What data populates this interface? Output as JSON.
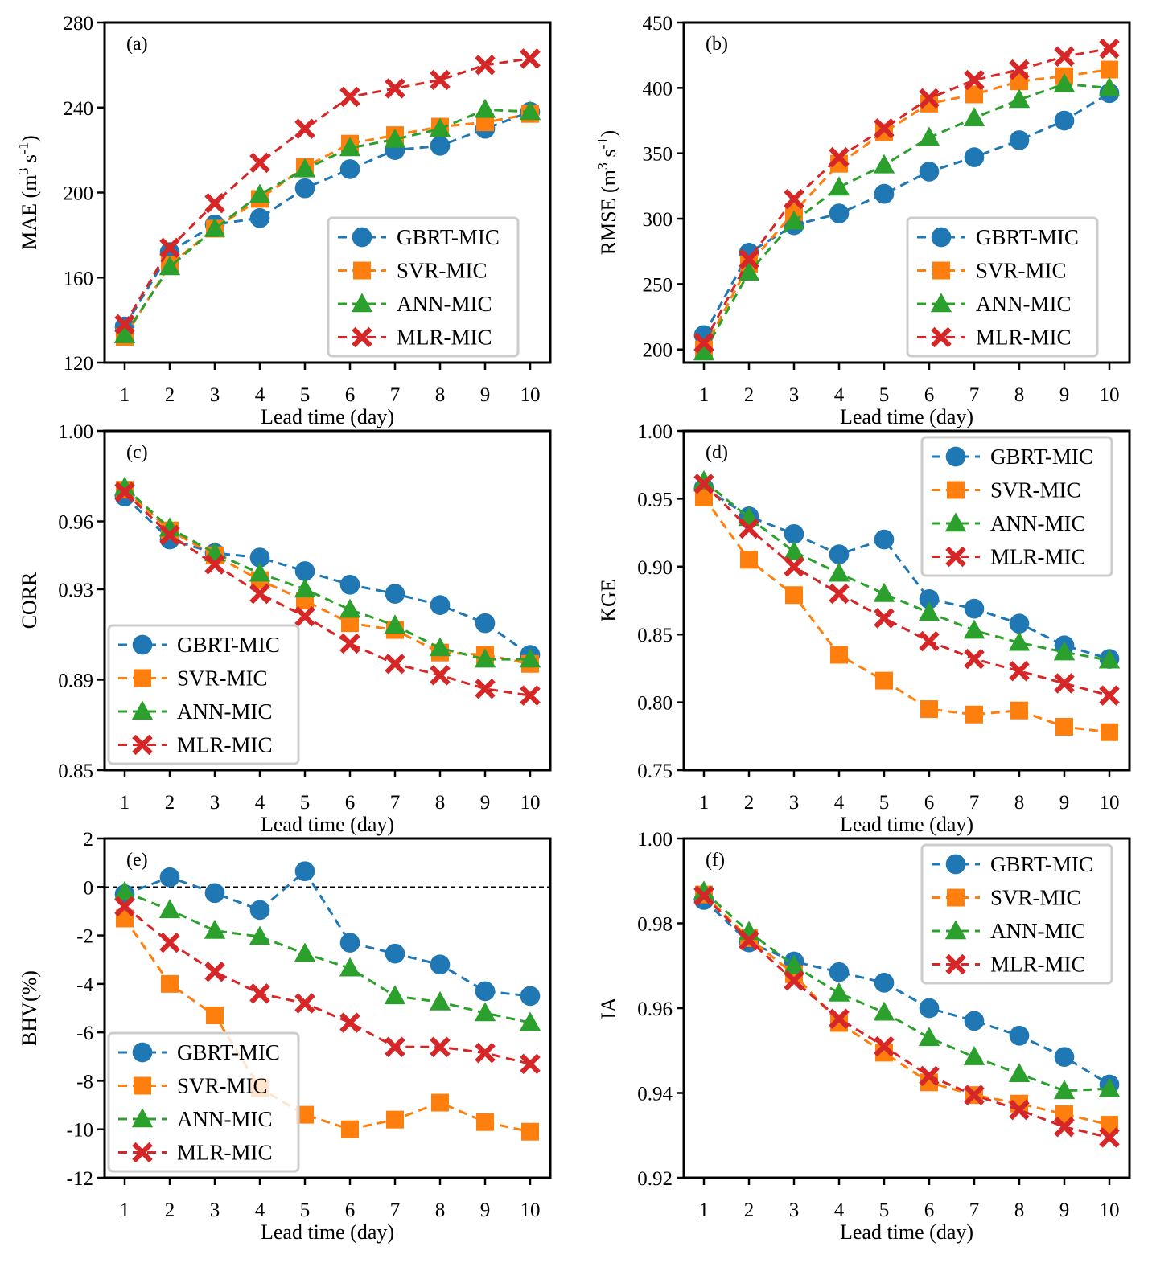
{
  "figure": {
    "shared": {
      "x": [
        1,
        2,
        3,
        4,
        5,
        6,
        7,
        8,
        9,
        10
      ],
      "x_ticks": [
        "1",
        "2",
        "3",
        "4",
        "5",
        "6",
        "7",
        "8",
        "9",
        "10"
      ],
      "series_styles": [
        {
          "name": "GBRT-MIC",
          "color": "#1f77b4",
          "marker": "circle"
        },
        {
          "name": "SVR-MIC",
          "color": "#ff7f0e",
          "marker": "square"
        },
        {
          "name": "ANN-MIC",
          "color": "#2ca02c",
          "marker": "triangle"
        },
        {
          "name": "MLR-MIC",
          "color": "#d62728",
          "marker": "x-filled"
        }
      ]
    }
  },
  "chart_data": [
    {
      "type": "line",
      "panel": "(a)",
      "title": "",
      "xlabel": "Lead time (day)",
      "ylabel": "MAE (m³ s⁻¹)",
      "ylabel_parts": {
        "base": "MAE (m",
        "sup1": "3",
        "mid": " s",
        "sup2": "-1",
        "end": ")"
      },
      "ylim": [
        120,
        280
      ],
      "yticks": [
        120,
        160,
        200,
        240,
        280
      ],
      "ytick_labels": [
        "120",
        "160",
        "200",
        "240",
        "280"
      ],
      "legend_position": "lower-right",
      "zero_line": false,
      "x": [
        1,
        2,
        3,
        4,
        5,
        6,
        7,
        8,
        9,
        10
      ],
      "series": [
        {
          "name": "GBRT-MIC",
          "values": [
            137,
            172,
            185,
            188,
            202,
            211,
            220,
            222,
            230,
            238
          ]
        },
        {
          "name": "SVR-MIC",
          "values": [
            132,
            166,
            183,
            197,
            212,
            223,
            227,
            231,
            233,
            237
          ]
        },
        {
          "name": "ANN-MIC",
          "values": [
            133,
            165,
            183,
            199,
            211,
            221,
            225,
            230,
            239,
            238
          ]
        },
        {
          "name": "MLR-MIC",
          "values": [
            138,
            174,
            195,
            214,
            230,
            245,
            249,
            253,
            260,
            263
          ]
        }
      ]
    },
    {
      "type": "line",
      "panel": "(b)",
      "title": "",
      "xlabel": "Lead time (day)",
      "ylabel": "RMSE (m³ s⁻¹)",
      "ylabel_parts": {
        "base": "RMSE (m",
        "sup1": "3",
        "mid": " s",
        "sup2": "-1",
        "end": ")"
      },
      "ylim": [
        190,
        450
      ],
      "yticks": [
        200,
        250,
        300,
        350,
        400,
        450
      ],
      "ytick_labels": [
        "200",
        "250",
        "300",
        "350",
        "400",
        "450"
      ],
      "legend_position": "lower-right",
      "zero_line": false,
      "x": [
        1,
        2,
        3,
        4,
        5,
        6,
        7,
        8,
        9,
        10
      ],
      "series": [
        {
          "name": "GBRT-MIC",
          "values": [
            211,
            274,
            295,
            304,
            319,
            336,
            347,
            360,
            375,
            396
          ]
        },
        {
          "name": "SVR-MIC",
          "values": [
            200,
            265,
            305,
            342,
            366,
            388,
            395,
            405,
            409,
            414
          ]
        },
        {
          "name": "ANN-MIC",
          "values": [
            198,
            259,
            298,
            324,
            341,
            362,
            377,
            391,
            403,
            400
          ]
        },
        {
          "name": "MLR-MIC",
          "values": [
            205,
            269,
            315,
            347,
            369,
            392,
            406,
            414,
            424,
            430
          ]
        }
      ]
    },
    {
      "type": "line",
      "panel": "(c)",
      "title": "",
      "xlabel": "Lead time (day)",
      "ylabel": "CORR",
      "ylim": [
        0.85,
        1.0
      ],
      "yticks": [
        0.85,
        0.89,
        0.93,
        0.96,
        1.0
      ],
      "ytick_labels": [
        "0.85",
        "0.89",
        "0.93",
        "0.96",
        "1.00"
      ],
      "legend_position": "lower-left",
      "zero_line": false,
      "x": [
        1,
        2,
        3,
        4,
        5,
        6,
        7,
        8,
        9,
        10
      ],
      "series": [
        {
          "name": "GBRT-MIC",
          "values": [
            0.971,
            0.952,
            0.946,
            0.944,
            0.938,
            0.932,
            0.928,
            0.923,
            0.915,
            0.901
          ]
        },
        {
          "name": "SVR-MIC",
          "values": [
            0.974,
            0.956,
            0.945,
            0.934,
            0.925,
            0.915,
            0.912,
            0.902,
            0.901,
            0.897
          ]
        },
        {
          "name": "ANN-MIC",
          "values": [
            0.975,
            0.957,
            0.946,
            0.937,
            0.93,
            0.921,
            0.914,
            0.904,
            0.899,
            0.899
          ]
        },
        {
          "name": "MLR-MIC",
          "values": [
            0.973,
            0.954,
            0.941,
            0.928,
            0.918,
            0.906,
            0.897,
            0.892,
            0.886,
            0.883
          ]
        }
      ]
    },
    {
      "type": "line",
      "panel": "(d)",
      "title": "",
      "xlabel": "Lead time (day)",
      "ylabel": "KGE",
      "ylim": [
        0.75,
        1.0
      ],
      "yticks": [
        0.75,
        0.8,
        0.85,
        0.9,
        0.95,
        1.0
      ],
      "ytick_labels": [
        "0.75",
        "0.80",
        "0.85",
        "0.90",
        "0.95",
        "1.00"
      ],
      "legend_position": "upper-right",
      "zero_line": false,
      "x": [
        1,
        2,
        3,
        4,
        5,
        6,
        7,
        8,
        9,
        10
      ],
      "series": [
        {
          "name": "GBRT-MIC",
          "values": [
            0.958,
            0.937,
            0.924,
            0.909,
            0.92,
            0.876,
            0.869,
            0.858,
            0.842,
            0.832
          ]
        },
        {
          "name": "SVR-MIC",
          "values": [
            0.951,
            0.905,
            0.879,
            0.835,
            0.816,
            0.795,
            0.791,
            0.794,
            0.782,
            0.778
          ]
        },
        {
          "name": "ANN-MIC",
          "values": [
            0.963,
            0.936,
            0.911,
            0.895,
            0.88,
            0.866,
            0.853,
            0.844,
            0.837,
            0.831
          ]
        },
        {
          "name": "MLR-MIC",
          "values": [
            0.961,
            0.928,
            0.9,
            0.88,
            0.862,
            0.845,
            0.832,
            0.823,
            0.814,
            0.805
          ]
        }
      ]
    },
    {
      "type": "line",
      "panel": "(e)",
      "title": "",
      "xlabel": "Lead time (day)",
      "ylabel": "BHV(%)",
      "ylim": [
        -12,
        2
      ],
      "yticks": [
        -12,
        -10,
        -8,
        -6,
        -4,
        -2,
        0,
        2
      ],
      "ytick_labels": [
        "-12",
        "-10",
        "-8",
        "-6",
        "-4",
        "-2",
        "0",
        "2"
      ],
      "legend_position": "lower-left",
      "zero_line": true,
      "x": [
        1,
        2,
        3,
        4,
        5,
        6,
        7,
        8,
        9,
        10
      ],
      "series": [
        {
          "name": "GBRT-MIC",
          "values": [
            -0.3,
            0.4,
            -0.25,
            -0.95,
            0.65,
            -2.3,
            -2.75,
            -3.2,
            -4.3,
            -4.5
          ]
        },
        {
          "name": "SVR-MIC",
          "values": [
            -1.3,
            -4.0,
            -5.3,
            -8.3,
            -9.4,
            -10.0,
            -9.6,
            -8.9,
            -9.7,
            -10.1
          ]
        },
        {
          "name": "ANN-MIC",
          "values": [
            -0.2,
            -0.95,
            -1.8,
            -2.05,
            -2.75,
            -3.35,
            -4.5,
            -4.75,
            -5.2,
            -5.6
          ]
        },
        {
          "name": "MLR-MIC",
          "values": [
            -0.8,
            -2.3,
            -3.5,
            -4.4,
            -4.8,
            -5.6,
            -6.6,
            -6.6,
            -6.85,
            -7.3
          ]
        }
      ]
    },
    {
      "type": "line",
      "panel": "(f)",
      "title": "",
      "xlabel": "Lead time (day)",
      "ylabel": "IA",
      "ylim": [
        0.92,
        1.0
      ],
      "yticks": [
        0.92,
        0.94,
        0.96,
        0.98,
        1.0
      ],
      "ytick_labels": [
        "0.92",
        "0.94",
        "0.96",
        "0.98",
        "1.00"
      ],
      "legend_position": "upper-right",
      "zero_line": false,
      "x": [
        1,
        2,
        3,
        4,
        5,
        6,
        7,
        8,
        9,
        10
      ],
      "series": [
        {
          "name": "GBRT-MIC",
          "values": [
            0.9855,
            0.9755,
            0.971,
            0.9685,
            0.966,
            0.96,
            0.957,
            0.9535,
            0.9485,
            0.942
          ]
        },
        {
          "name": "SVR-MIC",
          "values": [
            0.9868,
            0.9765,
            0.968,
            0.9565,
            0.9495,
            0.9425,
            0.9395,
            0.9375,
            0.935,
            0.9325
          ]
        },
        {
          "name": "ANN-MIC",
          "values": [
            0.9875,
            0.978,
            0.97,
            0.9635,
            0.959,
            0.953,
            0.9485,
            0.9445,
            0.9405,
            0.941
          ]
        },
        {
          "name": "MLR-MIC",
          "values": [
            0.9865,
            0.976,
            0.9665,
            0.9575,
            0.951,
            0.944,
            0.9395,
            0.936,
            0.932,
            0.9295
          ]
        }
      ]
    }
  ]
}
